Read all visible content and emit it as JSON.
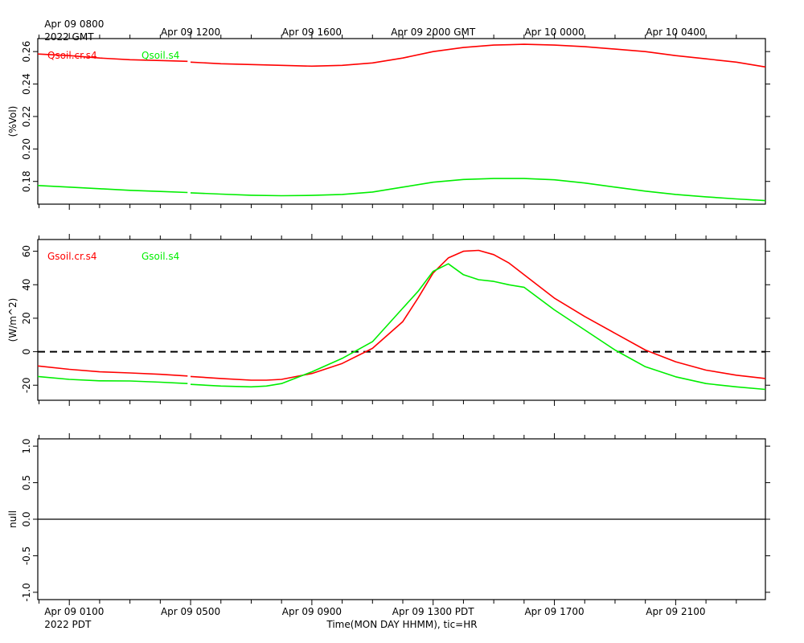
{
  "top_axis": {
    "ticks": [
      {
        "hour": 8,
        "line1": "Apr 09 0800",
        "line2": "2022 GMT"
      },
      {
        "hour": 12,
        "line1": "Apr 09 1200"
      },
      {
        "hour": 16,
        "line1": "Apr 09 1600"
      },
      {
        "hour": 20,
        "line1": "Apr 09 2000 GMT"
      },
      {
        "hour": 24,
        "line1": "Apr 10 0000"
      },
      {
        "hour": 28,
        "line1": "Apr 10 0400"
      }
    ]
  },
  "bottom_axis": {
    "ticks": [
      {
        "hour": 8,
        "line1": "Apr 09 0100",
        "line2": "2022 PDT"
      },
      {
        "hour": 12,
        "line1": "Apr 09 0500"
      },
      {
        "hour": 16,
        "line1": "Apr 09 0900"
      },
      {
        "hour": 20,
        "line1": "Apr 09 1300 PDT"
      },
      {
        "hour": 24,
        "line1": "Apr 09 1700"
      },
      {
        "hour": 28,
        "line1": "Apr 09 2100"
      }
    ],
    "label": "Time(MON DAY HHMM), tic=HR"
  },
  "chart_data": [
    {
      "type": "line",
      "ylabel": "(%Vol)",
      "ylim": [
        0.166,
        0.268
      ],
      "yticks": [
        0.18,
        0.2,
        0.22,
        0.24,
        0.26
      ],
      "ytick_labels": [
        "0.18",
        "0.20",
        "0.22",
        "0.24",
        "0.26"
      ],
      "xlim_hours_gmt": [
        6.96,
        30.96
      ],
      "series": [
        {
          "name": "Qsoil.cr.s4",
          "color": "#ff0000",
          "x": [
            6.96,
            8,
            9,
            10,
            11,
            11.9,
            12,
            13,
            14,
            15,
            16,
            17,
            18,
            19,
            20,
            21,
            22,
            23,
            24,
            25,
            26,
            27,
            28,
            29,
            30,
            30.96
          ],
          "y": [
            0.2585,
            0.2575,
            0.256,
            0.255,
            0.2545,
            0.254,
            0.2535,
            0.2525,
            0.252,
            0.2515,
            0.251,
            0.2515,
            0.253,
            0.256,
            0.26,
            0.2625,
            0.264,
            0.2645,
            0.264,
            0.263,
            0.2615,
            0.26,
            0.2575,
            0.2555,
            0.2535,
            0.2505
          ]
        },
        {
          "name": "Qsoil.s4",
          "color": "#00ee00",
          "x": [
            6.96,
            8,
            9,
            10,
            11,
            11.9,
            12,
            13,
            14,
            15,
            16,
            17,
            18,
            19,
            20,
            21,
            22,
            23,
            24,
            25,
            26,
            27,
            28,
            29,
            30,
            30.96
          ],
          "y": [
            0.1775,
            0.1765,
            0.1755,
            0.1745,
            0.1738,
            0.1732,
            0.173,
            0.1722,
            0.1715,
            0.1712,
            0.1714,
            0.172,
            0.1735,
            0.1765,
            0.1795,
            0.1812,
            0.1818,
            0.1818,
            0.181,
            0.179,
            0.1765,
            0.174,
            0.172,
            0.1705,
            0.1692,
            0.1682
          ]
        }
      ]
    },
    {
      "type": "line",
      "ylabel": "(W/m^2)",
      "ylim": [
        -29,
        67
      ],
      "yticks": [
        -20,
        0,
        20,
        40,
        60
      ],
      "ytick_labels": [
        "-20",
        "0",
        "20",
        "40",
        "60"
      ],
      "zero_line": 0,
      "xlim_hours_gmt": [
        6.96,
        30.96
      ],
      "series": [
        {
          "name": "Gsoil.cr.s4",
          "color": "#ff0000",
          "x": [
            6.96,
            8,
            9,
            10,
            11,
            11.9,
            12,
            13,
            14,
            14.5,
            15,
            16,
            17,
            18,
            19,
            19.5,
            20,
            20.5,
            21,
            21.5,
            22,
            22.5,
            23,
            24,
            25,
            26,
            27,
            28,
            29,
            30,
            30.96
          ],
          "y": [
            -8.5,
            -10.5,
            -12,
            -12.7,
            -13.5,
            -14.5,
            -14.8,
            -16,
            -17,
            -17,
            -16.5,
            -13,
            -7,
            2,
            18,
            32,
            47,
            56,
            60,
            60.5,
            58,
            53,
            46,
            32,
            21,
            11,
            1,
            -6,
            -11,
            -14,
            -16
          ]
        },
        {
          "name": "Gsoil.s4",
          "color": "#00ee00",
          "x": [
            6.96,
            8,
            9,
            10,
            11,
            11.9,
            12,
            13,
            14,
            14.5,
            15,
            16,
            17,
            18,
            19,
            19.5,
            20,
            20.5,
            21,
            21.5,
            22,
            22.5,
            23,
            24,
            25,
            26,
            27,
            28,
            29,
            30,
            30.96
          ],
          "y": [
            -14.8,
            -16.5,
            -17.4,
            -17.5,
            -18.2,
            -19,
            -19.5,
            -20.5,
            -21,
            -20.5,
            -19,
            -12,
            -4,
            6,
            26,
            36,
            48,
            52.5,
            46,
            43,
            42,
            40,
            38.5,
            25,
            13,
            1,
            -9,
            -15,
            -19,
            -21,
            -22.5
          ]
        }
      ]
    },
    {
      "type": "line",
      "ylabel": "null",
      "ylim": [
        -1.1,
        1.1
      ],
      "yticks": [
        -1.0,
        -0.5,
        0.0,
        0.5,
        1.0
      ],
      "ytick_labels": [
        "-1.0",
        "-0.5",
        "0.0",
        "0.5",
        "1.0"
      ],
      "zero_line": 0,
      "xlim_hours_gmt": [
        6.96,
        30.96
      ],
      "series": []
    }
  ]
}
